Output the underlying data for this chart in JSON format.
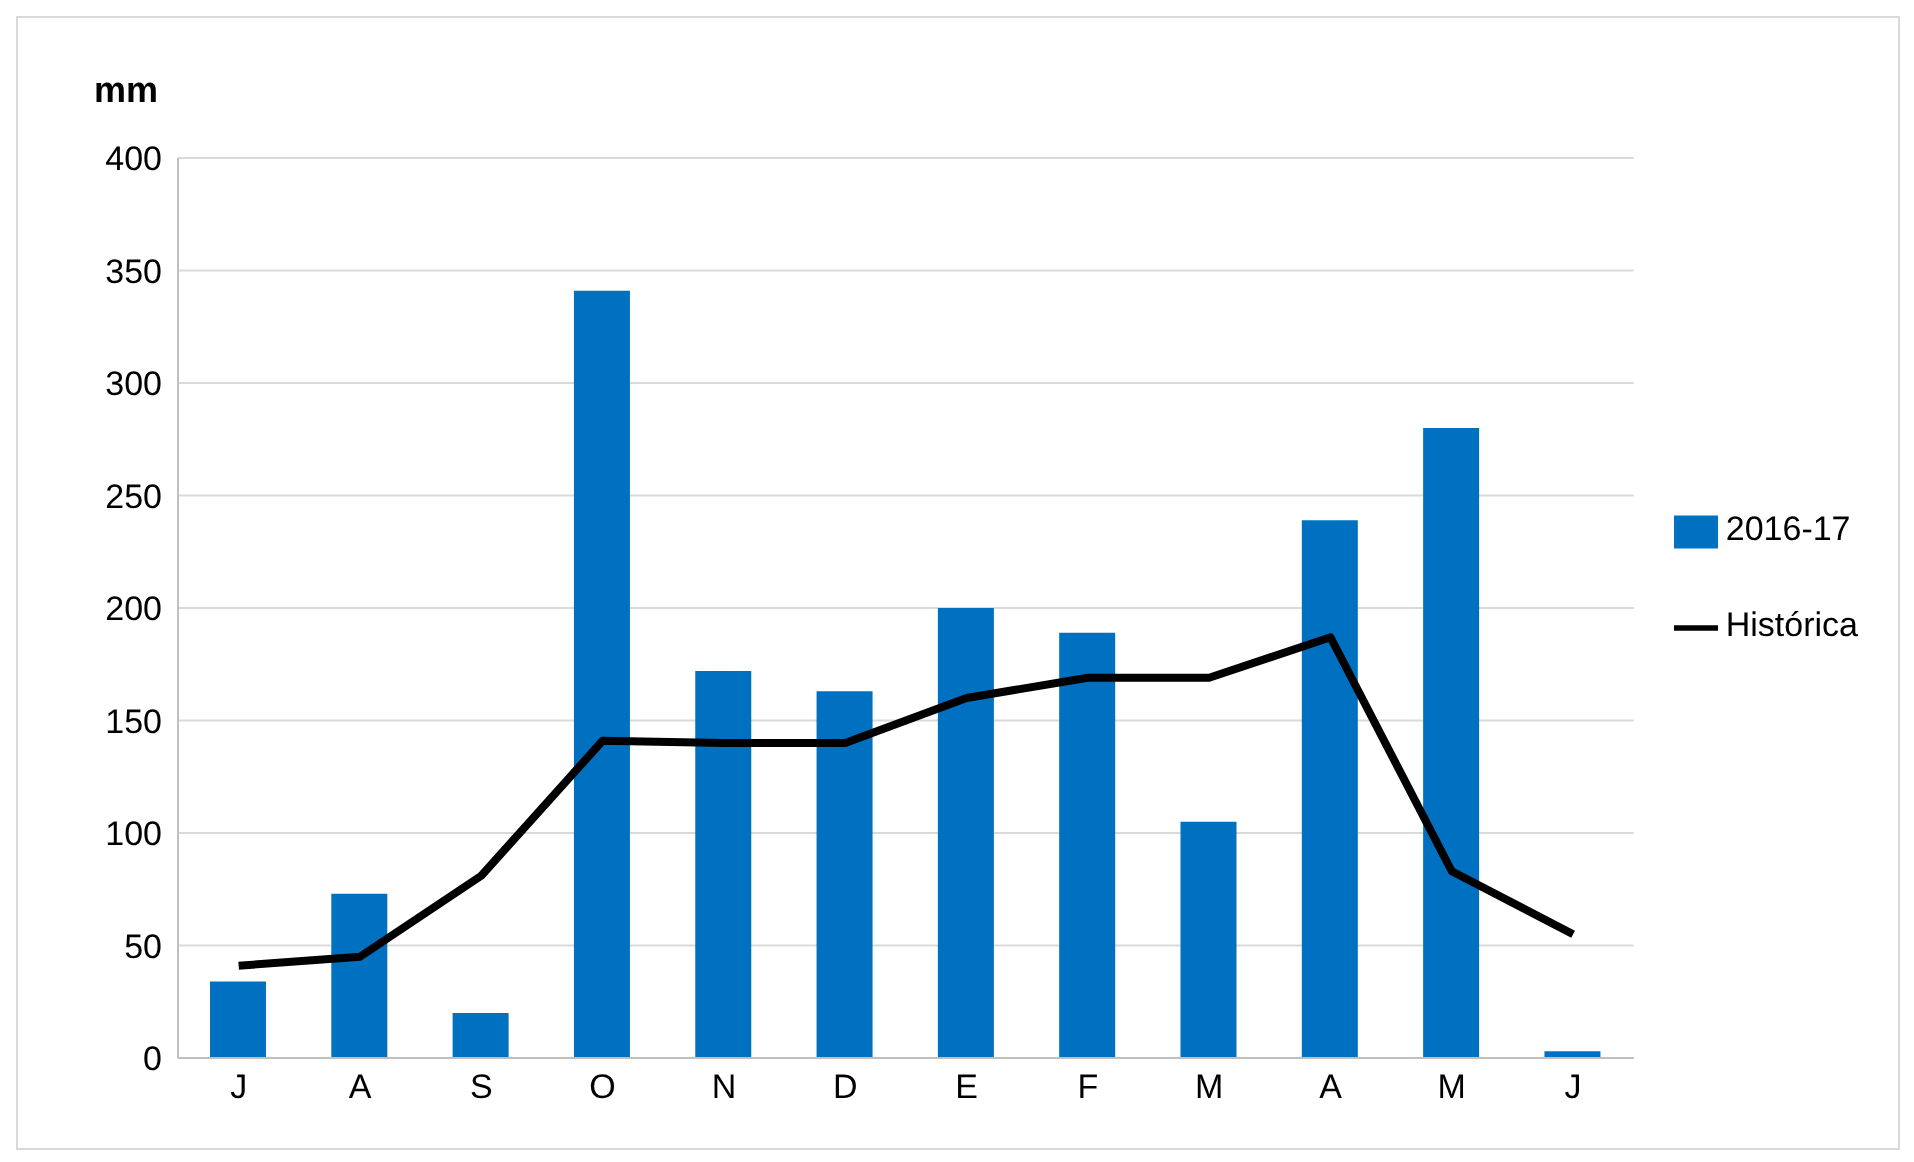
{
  "chart_data": {
    "type": "bar",
    "ylabel": "mm",
    "categories": [
      "J",
      "A",
      "S",
      "O",
      "N",
      "D",
      "E",
      "F",
      "M",
      "A",
      "M",
      "J"
    ],
    "series": [
      {
        "name": "2016-17",
        "color": "#0070c0",
        "values": [
          34,
          73,
          20,
          341,
          172,
          163,
          200,
          189,
          105,
          239,
          280,
          3
        ]
      },
      {
        "name": "Histórica",
        "type": "line",
        "color": "#000000",
        "values": [
          41,
          45,
          81,
          141,
          140,
          140,
          160,
          169,
          169,
          187,
          83,
          55
        ]
      }
    ],
    "ylim": [
      0,
      400
    ],
    "yticks": [
      0,
      50,
      100,
      150,
      200,
      250,
      300,
      350,
      400
    ],
    "grid": "y",
    "legend": "right",
    "marker": "none",
    "line_style": "solid"
  }
}
